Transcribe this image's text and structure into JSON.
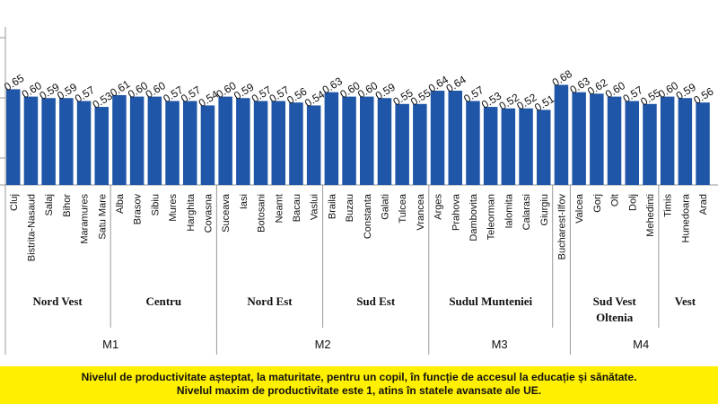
{
  "chart_data": {
    "type": "bar",
    "bar_color": "#1f56a8",
    "ylim": [
      0,
      1
    ],
    "categories": [
      "Cluj",
      "Bistrita-Nasaud",
      "Salaj",
      "Bihor",
      "Maramures",
      "Satu Mare",
      "Alba",
      "Brasov",
      "Sibiu",
      "Mures",
      "Harghita",
      "Covasna",
      "Suceava",
      "Iasi",
      "Botosani",
      "Neamt",
      "Bacau",
      "Vaslui",
      "Braila",
      "Buzau",
      "Constanta",
      "Galati",
      "Tulcea",
      "Vrancea",
      "Arges",
      "Prahova",
      "Dambovita",
      "Teleorman",
      "Ialomita",
      "Calarasi",
      "Giurgiu",
      "Bucharest-Ilfov",
      "Valcea",
      "Gorj",
      "Olt",
      "Dolj",
      "Mehedinti",
      "Timis",
      "Hunedoara",
      "Arad"
    ],
    "values": [
      0.65,
      0.6,
      0.59,
      0.59,
      0.57,
      0.53,
      0.61,
      0.6,
      0.6,
      0.57,
      0.57,
      0.54,
      0.6,
      0.59,
      0.57,
      0.57,
      0.56,
      0.54,
      0.63,
      0.6,
      0.6,
      0.59,
      0.55,
      0.55,
      0.64,
      0.64,
      0.57,
      0.53,
      0.52,
      0.52,
      0.51,
      0.68,
      0.63,
      0.62,
      0.6,
      0.57,
      0.55,
      0.6,
      0.59,
      0.56
    ],
    "value_labels": [
      "0.65",
      "0.60",
      "0.59",
      "0.59",
      "0.57",
      "0.53",
      "0.61",
      "0.60",
      "0.60",
      "0.57",
      "0.57",
      "0.54",
      "0.60",
      "0.59",
      "0.57",
      "0.57",
      "0.56",
      "0.54",
      "0.63",
      "0.60",
      "0.60",
      "0.59",
      "0.55",
      "0.55",
      "0.64",
      "0.64",
      "0.57",
      "0.53",
      "0.52",
      "0.52",
      "0.51",
      "0.68",
      "0.63",
      "0.62",
      "0.60",
      "0.57",
      "0.55",
      "0.60",
      "0.59",
      "0.56"
    ],
    "regions": [
      {
        "name": "Nord Vest",
        "start": 0,
        "end": 5
      },
      {
        "name": "Centru",
        "start": 6,
        "end": 11
      },
      {
        "name": "Nord Est",
        "start": 12,
        "end": 17
      },
      {
        "name": "Sud Est",
        "start": 18,
        "end": 23
      },
      {
        "name": "Sudul Munteniei",
        "start": 24,
        "end": 30
      },
      {
        "name": "",
        "start": 31,
        "end": 31
      },
      {
        "name": "Sud Vest\nOltenia",
        "start": 32,
        "end": 36
      },
      {
        "name": "Vest",
        "start": 37,
        "end": 39
      }
    ],
    "macro_regions": [
      {
        "name": "M1",
        "start": 0,
        "end": 11
      },
      {
        "name": "M2",
        "start": 12,
        "end": 23
      },
      {
        "name": "M3",
        "start": 24,
        "end": 31
      },
      {
        "name": "M4",
        "start": 32,
        "end": 39
      }
    ]
  },
  "caption": {
    "line1": "Nivelul de productivitate așteptat, la maturitate, pentru un copil, în funcție de accesul la educație și sănătate.",
    "line2": "Nivelul maxim de productivitate este 1, atins în statele avansate ale UE."
  }
}
